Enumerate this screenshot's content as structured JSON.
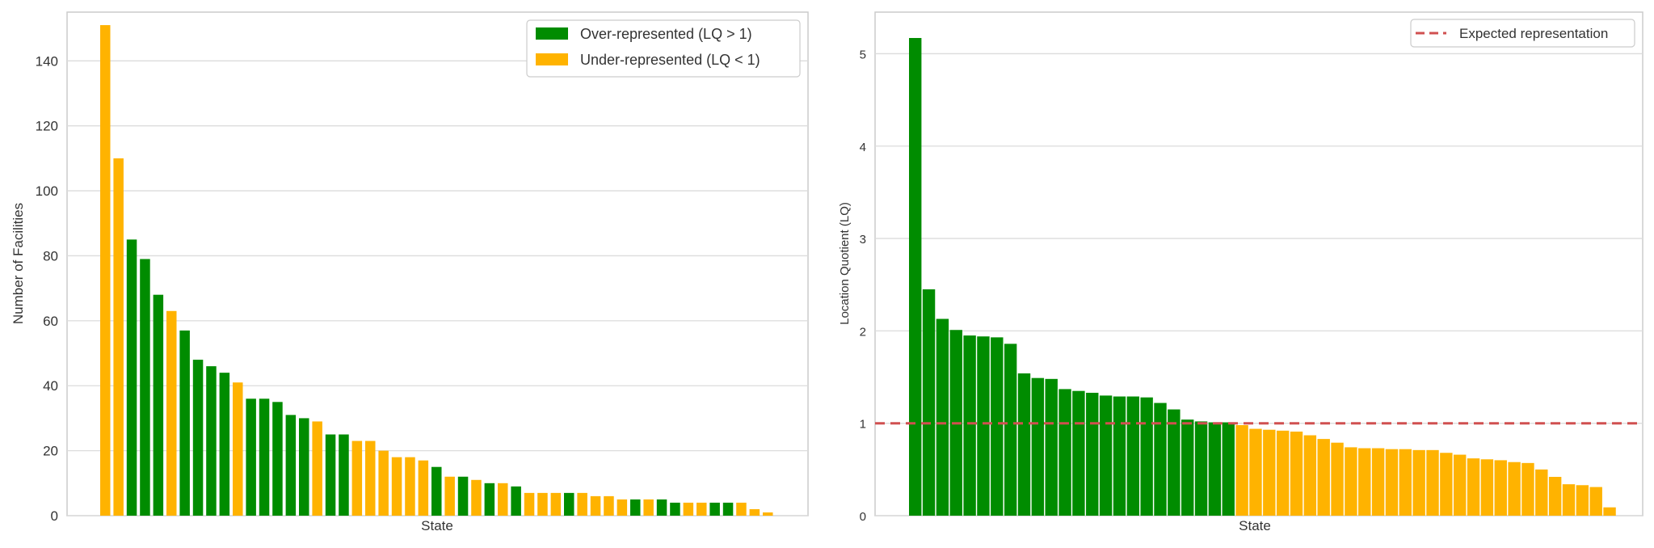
{
  "colors": {
    "over": "#008c00",
    "under": "#ffb300",
    "grid": "#dcdcdc",
    "frame": "#cccccc",
    "text": "#333333",
    "refline": "#d05050"
  },
  "chart_data": [
    {
      "type": "bar",
      "title": "",
      "xlabel": "State",
      "ylabel": "Number of Facilities",
      "ylim": [
        0,
        155
      ],
      "yticks": [
        0,
        20,
        40,
        60,
        80,
        100,
        120,
        140
      ],
      "grid": true,
      "legend_position": "top-right",
      "legend": [
        {
          "label": "Over-represented (LQ > 1)",
          "color_key": "over"
        },
        {
          "label": "Under-represented (LQ < 1)",
          "color_key": "under"
        }
      ],
      "values": [
        151,
        110,
        85,
        79,
        68,
        63,
        57,
        48,
        46,
        44,
        41,
        36,
        36,
        35,
        31,
        30,
        29,
        25,
        25,
        23,
        23,
        20,
        18,
        18,
        17,
        15,
        12,
        12,
        11,
        10,
        10,
        9,
        7,
        7,
        7,
        7,
        7,
        6,
        6,
        5,
        5,
        5,
        5,
        4,
        4,
        4,
        4,
        4,
        4,
        2,
        1
      ],
      "groups": [
        "under",
        "under",
        "over",
        "over",
        "over",
        "under",
        "over",
        "over",
        "over",
        "over",
        "under",
        "over",
        "over",
        "over",
        "over",
        "over",
        "under",
        "over",
        "over",
        "under",
        "under",
        "under",
        "under",
        "under",
        "under",
        "over",
        "under",
        "over",
        "under",
        "over",
        "under",
        "over",
        "under",
        "under",
        "under",
        "over",
        "under",
        "under",
        "under",
        "under",
        "over",
        "under",
        "over",
        "over",
        "under",
        "under",
        "over",
        "over",
        "under",
        "under",
        "under"
      ]
    },
    {
      "type": "bar",
      "title": "",
      "xlabel": "State",
      "ylabel": "Location Quotient (LQ)",
      "ylim": [
        0,
        5.45
      ],
      "yticks": [
        0,
        1,
        2,
        3,
        4,
        5
      ],
      "grid": true,
      "legend_position": "top-right",
      "legend": [
        {
          "label": "Expected representation",
          "line": "dashed",
          "color_key": "refline"
        }
      ],
      "reference_line": 1,
      "values": [
        5.17,
        2.45,
        2.13,
        2.01,
        1.95,
        1.94,
        1.93,
        1.86,
        1.54,
        1.49,
        1.48,
        1.37,
        1.35,
        1.33,
        1.3,
        1.29,
        1.29,
        1.28,
        1.22,
        1.15,
        1.04,
        1.02,
        1.01,
        1.01,
        0.98,
        0.94,
        0.93,
        0.92,
        0.91,
        0.87,
        0.83,
        0.79,
        0.74,
        0.73,
        0.73,
        0.72,
        0.72,
        0.71,
        0.71,
        0.68,
        0.66,
        0.62,
        0.61,
        0.6,
        0.58,
        0.57,
        0.5,
        0.42,
        0.34,
        0.33,
        0.31,
        0.09
      ],
      "groups": [
        "over",
        "over",
        "over",
        "over",
        "over",
        "over",
        "over",
        "over",
        "over",
        "over",
        "over",
        "over",
        "over",
        "over",
        "over",
        "over",
        "over",
        "over",
        "over",
        "over",
        "over",
        "over",
        "over",
        "over",
        "under",
        "under",
        "under",
        "under",
        "under",
        "under",
        "under",
        "under",
        "under",
        "under",
        "under",
        "under",
        "under",
        "under",
        "under",
        "under",
        "under",
        "under",
        "under",
        "under",
        "under",
        "under",
        "under",
        "under",
        "under",
        "under",
        "under",
        "under"
      ]
    }
  ]
}
